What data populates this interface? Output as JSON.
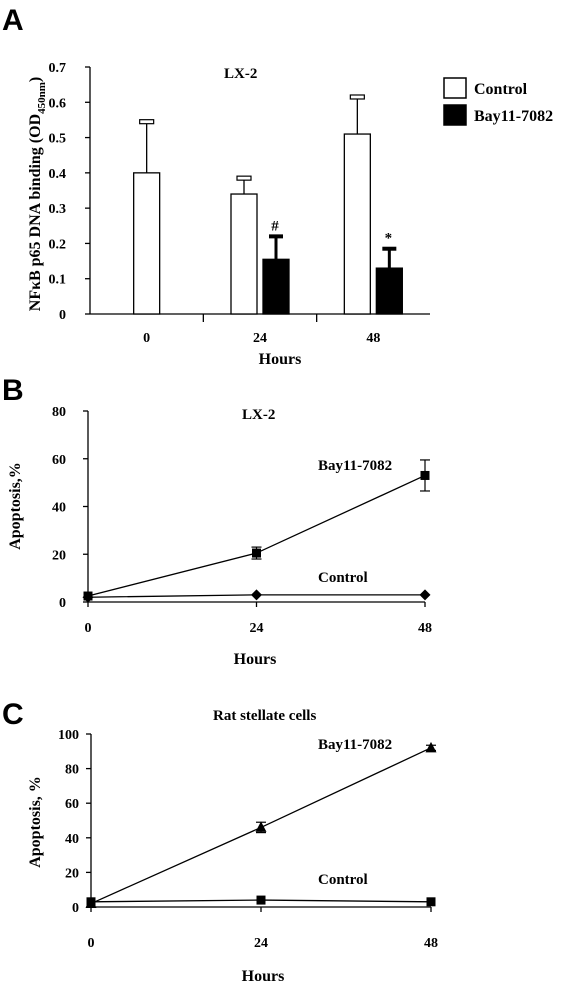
{
  "chart_data": [
    {
      "panel": "A",
      "type": "bar",
      "title": "LX-2",
      "xlabel": "Hours",
      "ylabel_main": "NFκB p65 DNA binding (OD",
      "ylabel_sub": "450nm",
      "ylabel_end": ")",
      "categories": [
        "0",
        "24",
        "48"
      ],
      "ylim": [
        0,
        0.7
      ],
      "yticks": [
        "0",
        "0.1",
        "0.2",
        "0.3",
        "0.4",
        "0.5",
        "0.6",
        "0.7"
      ],
      "series": [
        {
          "name": "Control",
          "color": "#ffffff",
          "values": [
            0.4,
            0.34,
            0.51
          ],
          "errors": [
            0.145,
            0.045,
            0.105
          ]
        },
        {
          "name": "Bay11-7082",
          "color": "#000000",
          "values": [
            null,
            0.155,
            0.13
          ],
          "errors": [
            null,
            0.065,
            0.055
          ]
        }
      ],
      "annotations": [
        {
          "text": "#",
          "category": "24",
          "series": "Bay11-7082"
        },
        {
          "text": "*",
          "category": "48",
          "series": "Bay11-7082"
        }
      ],
      "legend_position": "top-right"
    },
    {
      "panel": "B",
      "type": "line",
      "title": "LX-2",
      "xlabel": "Hours",
      "ylabel": "Apoptosis,%",
      "x": [
        0,
        24,
        48
      ],
      "xlim": [
        0,
        48
      ],
      "ylim": [
        0,
        80
      ],
      "xticks": [
        "0",
        "24",
        "48"
      ],
      "yticks": [
        "0",
        "20",
        "40",
        "60",
        "80"
      ],
      "series": [
        {
          "name": "Bay11-7082",
          "marker": "square",
          "values": [
            2.5,
            20.5,
            53
          ],
          "errors": [
            0,
            2.5,
            6.5
          ]
        },
        {
          "name": "Control",
          "marker": "diamond",
          "values": [
            2,
            3,
            3
          ],
          "errors": [
            0,
            0,
            0
          ]
        }
      ]
    },
    {
      "panel": "C",
      "type": "line",
      "title": "Rat stellate cells",
      "xlabel": "Hours",
      "ylabel": "Apoptosis, %",
      "x": [
        0,
        24,
        48
      ],
      "xlim": [
        0,
        48
      ],
      "ylim": [
        0,
        100
      ],
      "xticks": [
        "0",
        "24",
        "48"
      ],
      "yticks": [
        "0",
        "20",
        "40",
        "60",
        "80",
        "100"
      ],
      "series": [
        {
          "name": "Bay11-7082",
          "marker": "triangle",
          "values": [
            2,
            46,
            92
          ],
          "errors": [
            0,
            3,
            1.5
          ]
        },
        {
          "name": "Control",
          "marker": "square",
          "values": [
            3,
            4,
            3
          ],
          "errors": [
            0,
            0,
            0
          ]
        }
      ]
    }
  ]
}
